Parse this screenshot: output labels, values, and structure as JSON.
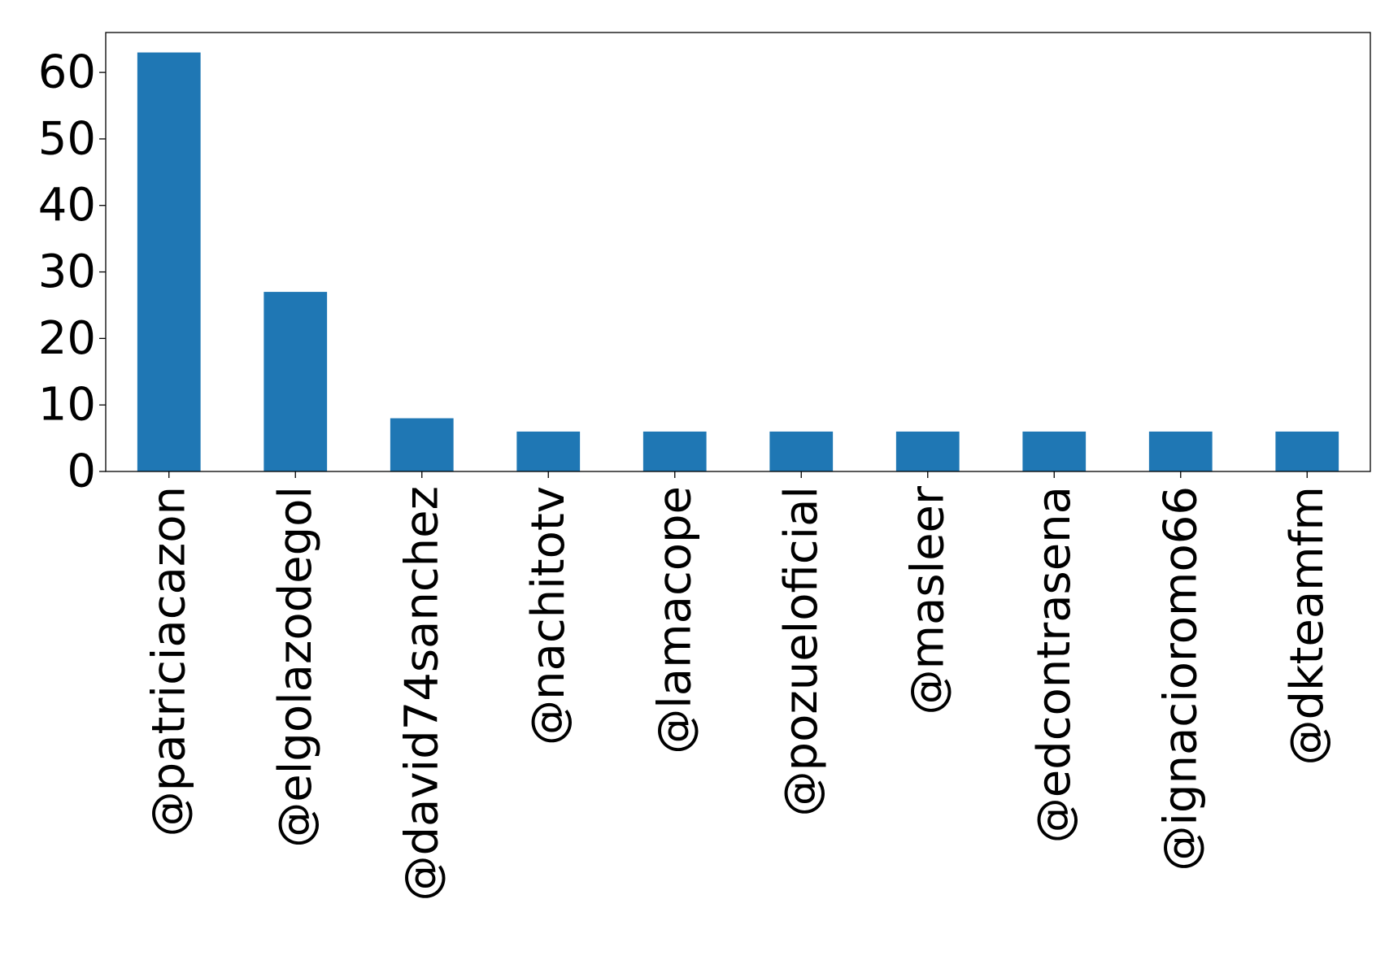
{
  "chart_data": {
    "type": "bar",
    "title": "",
    "xlabel": "",
    "ylabel": "",
    "categories": [
      "@patriciacazon",
      "@elgolazodegol",
      "@david74sanchez",
      "@nachitotv",
      "@lamacope",
      "@pozueloficial",
      "@masleer",
      "@edcontrasena",
      "@ignacioromo66",
      "@dkteamfm"
    ],
    "values": [
      63,
      27,
      8,
      6,
      6,
      6,
      6,
      6,
      6,
      6
    ],
    "ylim": [
      0,
      66
    ],
    "yticks": [
      0,
      10,
      20,
      30,
      40,
      50,
      60
    ],
    "grid": false,
    "legend": "none",
    "bar_color": "#1f77b4"
  }
}
